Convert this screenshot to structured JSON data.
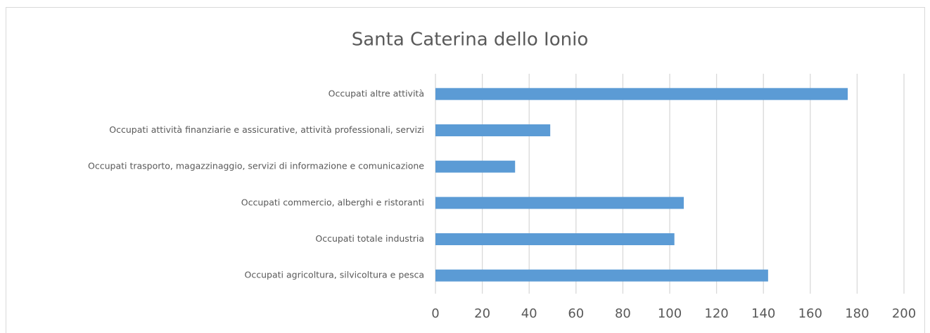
{
  "chart_data": {
    "type": "hbar",
    "title": "Santa Caterina dello Ionio",
    "categories": [
      "Occupati altre attività",
      "Occupati attività finanziarie e assicurative, attività professionali, servizi",
      "Occupati trasporto, magazzinaggio, servizi di informazione e comunicazione",
      "Occupati commercio, alberghi e ristoranti",
      "Occupati totale industria",
      "Occupati agricoltura, silvicoltura e pesca"
    ],
    "values": [
      176,
      49,
      34,
      106,
      102,
      142
    ],
    "color": "#5b9bd5",
    "xlim": [
      0,
      200
    ],
    "xticks": [
      0,
      20,
      40,
      60,
      80,
      100,
      120,
      140,
      160,
      180,
      200
    ],
    "grid": true
  }
}
